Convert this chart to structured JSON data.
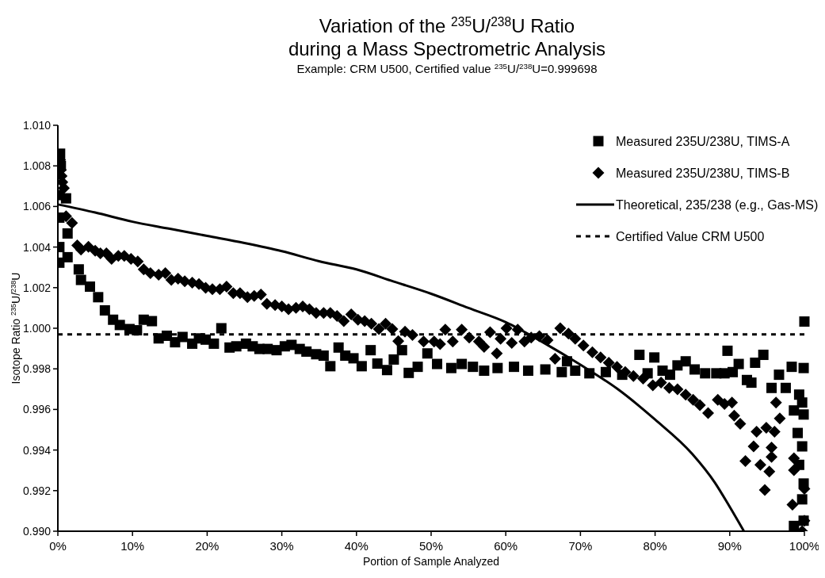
{
  "chart_data": {
    "type": "scatter",
    "title": "Variation of the $^{235}$U/$^{238}$U Ratio\nduring a Mass Spectrometric Analysis",
    "subtitle": "Example: CRM U500, Certified value $^{235}$U/$^{238}$U=0.999698",
    "xlabel": "Portion of Sample Analyzed",
    "ylabel": "Isotope Ratio $^{235}$U/$^{238}$U",
    "xlim": [
      0,
      100
    ],
    "xticks": [
      {
        "value": 0,
        "label": "0%"
      },
      {
        "value": 10,
        "label": "10%"
      },
      {
        "value": 20,
        "label": "20%"
      },
      {
        "value": 30,
        "label": "30%"
      },
      {
        "value": 40,
        "label": "40%"
      },
      {
        "value": 50,
        "label": "50%"
      },
      {
        "value": 60,
        "label": "60%"
      },
      {
        "value": 70,
        "label": "70%"
      },
      {
        "value": 80,
        "label": "80%"
      },
      {
        "value": 90,
        "label": "90%"
      },
      {
        "value": 100,
        "label": "100%"
      }
    ],
    "ylim": [
      0.99,
      1.01
    ],
    "yticks": [
      {
        "value": 0.99,
        "label": "0.990"
      },
      {
        "value": 0.992,
        "label": "0.992"
      },
      {
        "value": 0.994,
        "label": "0.994"
      },
      {
        "value": 0.996,
        "label": "0.996"
      },
      {
        "value": 0.998,
        "label": "0.998"
      },
      {
        "value": 1,
        "label": "1.000"
      },
      {
        "value": 1.002,
        "label": "1.002"
      },
      {
        "value": 1.004,
        "label": "1.004"
      },
      {
        "value": 1.006,
        "label": "1.006"
      },
      {
        "value": 1.008,
        "label": "1.008"
      },
      {
        "value": 1.01,
        "label": "1.010"
      }
    ],
    "grid": false,
    "legend": "top right",
    "series": [
      {
        "name": "Measured 235U/238U, TIMS-A",
        "marker": "square",
        "color": "#000000",
        "x": [
          0.2,
          0.2,
          0.2,
          0.2,
          0.3,
          0.4,
          1.1,
          1.3,
          1.3,
          2.8,
          3.1,
          4.3,
          5.4,
          6.3,
          7.4,
          8.3,
          9.6,
          10.6,
          11.5,
          12.6,
          13.5,
          14.6,
          15.7,
          16.7,
          18.0,
          18.9,
          19.8,
          20.9,
          21.9,
          23.0,
          23.9,
          25.2,
          26.1,
          27.0,
          28.1,
          29.3,
          30.4,
          31.3,
          32.4,
          33.3,
          34.6,
          35.6,
          36.5,
          37.6,
          38.5,
          39.6,
          40.7,
          41.9,
          42.8,
          44.1,
          45.0,
          46.1,
          47.0,
          48.2,
          49.5,
          50.8,
          52.7,
          54.1,
          55.6,
          57.1,
          58.9,
          61.1,
          63.0,
          65.3,
          67.5,
          68.2,
          69.3,
          71.2,
          73.4,
          75.6,
          77.9,
          79.0,
          79.9,
          81.0,
          82.0,
          83.0,
          84.1,
          85.3,
          86.7,
          88.2,
          89.3,
          89.7,
          90.4,
          91.2,
          92.3,
          92.9,
          93.4,
          94.5,
          95.6,
          96.6,
          97.5,
          98.3,
          99.9,
          100.0,
          99.3,
          99.7,
          99.9,
          98.6,
          99.1,
          99.7,
          99.3,
          99.9,
          99.7,
          98.6,
          99.9
        ],
        "values": [
          1.00323,
          1.004,
          1.00545,
          1.00656,
          1.0086,
          1.008,
          1.0064,
          1.00467,
          1.0035,
          1.0029,
          1.00238,
          1.00205,
          1.00153,
          1.00088,
          1.00042,
          1.00016,
          0.99996,
          0.9999,
          1.00042,
          1.00035,
          0.9995,
          0.99963,
          0.99931,
          0.99957,
          0.99924,
          0.9995,
          0.99944,
          0.99924,
          1.0,
          0.99905,
          0.99911,
          0.99924,
          0.99911,
          0.99898,
          0.99898,
          0.99892,
          0.99911,
          0.99918,
          0.99898,
          0.99885,
          0.99872,
          0.99865,
          0.99813,
          0.99905,
          0.99865,
          0.99852,
          0.99813,
          0.99892,
          0.99826,
          0.99794,
          0.99846,
          0.99892,
          0.9978,
          0.9981,
          0.99876,
          0.99824,
          0.99804,
          0.99824,
          0.9981,
          0.99791,
          0.99804,
          0.9981,
          0.99791,
          0.99797,
          0.99784,
          0.99837,
          0.99791,
          0.99778,
          0.99784,
          0.99771,
          0.99869,
          0.99778,
          0.99856,
          0.99791,
          0.99771,
          0.99817,
          0.99837,
          0.99797,
          0.99778,
          0.99778,
          0.99778,
          0.99889,
          0.99784,
          0.99824,
          0.99745,
          0.99732,
          0.9983,
          0.99869,
          0.99706,
          0.99771,
          0.99706,
          0.9981,
          0.99804,
          1.00033,
          0.99673,
          0.99634,
          0.99575,
          0.99595,
          0.99484,
          0.99418,
          0.99327,
          0.99235,
          0.99157,
          0.99026,
          0.99052
        ]
      },
      {
        "name": "Measured 235U/238U, TIMS-B",
        "marker": "diamond",
        "color": "#000000",
        "x": [
          0.3,
          0.4,
          0.5,
          0.6,
          0.8,
          1.1,
          1.9,
          2.6,
          3.1,
          4.1,
          5.0,
          5.7,
          6.5,
          7.2,
          8.1,
          8.9,
          9.8,
          10.7,
          11.5,
          12.4,
          13.5,
          14.4,
          15.2,
          16.1,
          17.0,
          18.0,
          18.9,
          19.8,
          20.7,
          21.7,
          22.6,
          23.5,
          24.4,
          25.4,
          26.3,
          27.2,
          28.0,
          29.1,
          30.0,
          30.9,
          31.9,
          32.8,
          33.7,
          34.6,
          35.6,
          36.5,
          37.4,
          38.3,
          39.3,
          40.2,
          41.1,
          42.0,
          43.0,
          43.9,
          44.8,
          45.6,
          46.5,
          47.5,
          49.0,
          50.4,
          51.2,
          51.9,
          52.9,
          54.1,
          55.1,
          56.4,
          57.1,
          57.9,
          58.8,
          59.3,
          60.1,
          60.8,
          61.6,
          62.5,
          63.4,
          64.5,
          65.6,
          66.6,
          67.3,
          68.4,
          69.3,
          70.4,
          71.6,
          72.7,
          73.8,
          74.9,
          76.0,
          77.1,
          78.4,
          79.7,
          80.8,
          81.9,
          83.0,
          84.1,
          85.1,
          86.0,
          87.1,
          88.4,
          89.3,
          90.3,
          90.6,
          91.4,
          92.1,
          93.2,
          93.6,
          94.1,
          94.7,
          94.9,
          95.3,
          95.6,
          95.6,
          96.0,
          96.2,
          96.7,
          98.4,
          98.6,
          98.6,
          99.7,
          100.0,
          100.0
        ],
        "values": [
          1.0083,
          1.0078,
          1.0075,
          1.0072,
          1.0069,
          1.00552,
          1.00519,
          1.00408,
          1.00388,
          1.00401,
          1.00382,
          1.00369,
          1.00369,
          1.00342,
          1.00356,
          1.00356,
          1.00342,
          1.00329,
          1.0029,
          1.00271,
          1.00264,
          1.00271,
          1.00238,
          1.00244,
          1.00231,
          1.00225,
          1.00218,
          1.00199,
          1.00192,
          1.00192,
          1.00205,
          1.00173,
          1.00173,
          1.00153,
          1.00159,
          1.00166,
          1.0012,
          1.00114,
          1.00107,
          1.00094,
          1.00101,
          1.00107,
          1.00094,
          1.00075,
          1.00075,
          1.00075,
          1.00061,
          1.00035,
          1.00068,
          1.00042,
          1.00035,
          1.00022,
          0.99996,
          1.00022,
          0.99996,
          0.99937,
          0.99983,
          0.99967,
          0.99935,
          0.99935,
          0.99922,
          0.99993,
          0.99935,
          0.99993,
          0.99954,
          0.99935,
          0.99908,
          0.9998,
          0.99876,
          0.99948,
          1.0,
          0.99928,
          0.99993,
          0.99935,
          0.99954,
          0.99961,
          0.99941,
          0.9985,
          1.0,
          0.99974,
          0.99948,
          0.99915,
          0.99882,
          0.99856,
          0.9983,
          0.9981,
          0.99784,
          0.99765,
          0.99752,
          0.99719,
          0.99732,
          0.99706,
          0.99699,
          0.99673,
          0.99647,
          0.99621,
          0.99582,
          0.99647,
          0.99627,
          0.99634,
          0.99569,
          0.99529,
          0.99346,
          0.99418,
          0.9949,
          0.99327,
          0.99203,
          0.9951,
          0.99294,
          0.99412,
          0.99366,
          0.9949,
          0.99634,
          0.99556,
          0.99131,
          0.99301,
          0.99359,
          0.99,
          0.99052,
          0.99209
        ]
      },
      {
        "name": "Theoretical, 235/238 (e.g., Gas-MS)",
        "type": "line",
        "marker": "none",
        "line_style": "solid",
        "color": "#000000",
        "x": [
          0,
          5,
          10,
          15,
          20,
          25,
          30,
          35,
          40,
          45,
          50,
          55,
          60,
          65,
          70,
          75,
          80,
          85,
          88,
          90,
          91.9
        ],
        "values": [
          1.0061,
          1.0057,
          1.00525,
          1.0049,
          1.00455,
          1.0042,
          1.0038,
          1.0033,
          1.0029,
          1.0023,
          1.0017,
          1.001,
          1.0003,
          0.9993,
          0.9982,
          0.997,
          0.9955,
          0.9938,
          0.9924,
          0.9912,
          0.99
        ]
      }
    ],
    "ref_lines": [
      {
        "axis": "y",
        "value": 0.999698,
        "label": "Certified Value CRM U500",
        "color": "#000000",
        "line_style": "dashed"
      }
    ]
  }
}
